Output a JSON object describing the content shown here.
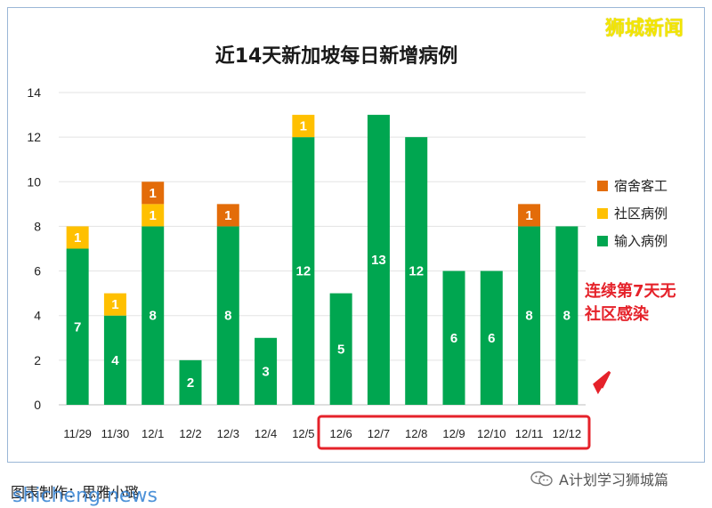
{
  "watermark": "狮城新闻",
  "annotation": {
    "line1": "连续第7天无",
    "line2": "社区感染"
  },
  "footer": {
    "note": "图表制作：思雅小璐",
    "brand": "shicheng.news",
    "wechat": "A计划学习狮城篇"
  },
  "colors": {
    "migrant": "#e36c09",
    "community": "#ffc000",
    "imported": "#00a650",
    "highlight": "#e5222a"
  },
  "chart_data": {
    "type": "bar",
    "stacked": true,
    "title": "近14天新加坡每日新增病例",
    "categories": [
      "11/29",
      "11/30",
      "12/1",
      "12/2",
      "12/3",
      "12/4",
      "12/5",
      "12/6",
      "12/7",
      "12/8",
      "12/9",
      "12/10",
      "12/11",
      "12/12"
    ],
    "series": [
      {
        "name": "输入病例",
        "color": "#00a650",
        "values": [
          7,
          4,
          8,
          2,
          8,
          3,
          12,
          5,
          13,
          12,
          6,
          6,
          8,
          8
        ]
      },
      {
        "name": "社区病例",
        "color": "#ffc000",
        "values": [
          1,
          1,
          1,
          0,
          0,
          0,
          1,
          0,
          0,
          0,
          0,
          0,
          0,
          0
        ]
      },
      {
        "name": "宿舍客工",
        "color": "#e36c09",
        "values": [
          0,
          0,
          1,
          0,
          1,
          0,
          0,
          0,
          0,
          0,
          0,
          0,
          1,
          0
        ]
      }
    ],
    "legend": [
      "宿舍客工",
      "社区病例",
      "输入病例"
    ],
    "legend_position": "right",
    "ylim": [
      0,
      14
    ],
    "yticks": [
      0,
      2,
      4,
      6,
      8,
      10,
      12,
      14
    ],
    "grid": true,
    "highlight_range": [
      "12/6",
      "12/12"
    ]
  }
}
